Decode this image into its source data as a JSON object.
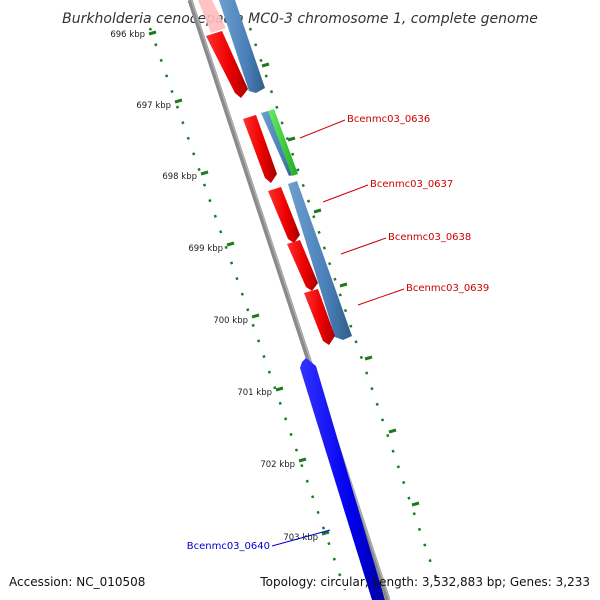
{
  "title": "Burkholderia cenocepacia MC0-3 chromosome 1, complete genome",
  "footer": {
    "accession": "Accession: NC_010508",
    "stats": "Topology: circular; Length: 3,532,883 bp; Genes: 3,233"
  },
  "ticks": [
    {
      "label": "696 kbp"
    },
    {
      "label": "697 kbp"
    },
    {
      "label": "698 kbp"
    },
    {
      "label": "699 kbp"
    },
    {
      "label": "700 kbp"
    },
    {
      "label": "701 kbp"
    },
    {
      "label": "702 kbp"
    },
    {
      "label": "703 kbp"
    }
  ],
  "gene_labels": [
    {
      "label": "Bcenmc03_0636",
      "color": "#cc0000"
    },
    {
      "label": "Bcenmc03_0637",
      "color": "#cc0000"
    },
    {
      "label": "Bcenmc03_0638",
      "color": "#cc0000"
    },
    {
      "label": "Bcenmc03_0639",
      "color": "#cc0000"
    },
    {
      "label": "Bcenmc03_0640",
      "color": "#0000cc"
    }
  ],
  "colors": {
    "gene_red": "#ff0000",
    "cds_steelblue": "#4f86be",
    "gene_green": "#33cc33",
    "gene_blue": "#0000ee",
    "backbone": "#888888",
    "ticks": "#1e7a1e"
  }
}
